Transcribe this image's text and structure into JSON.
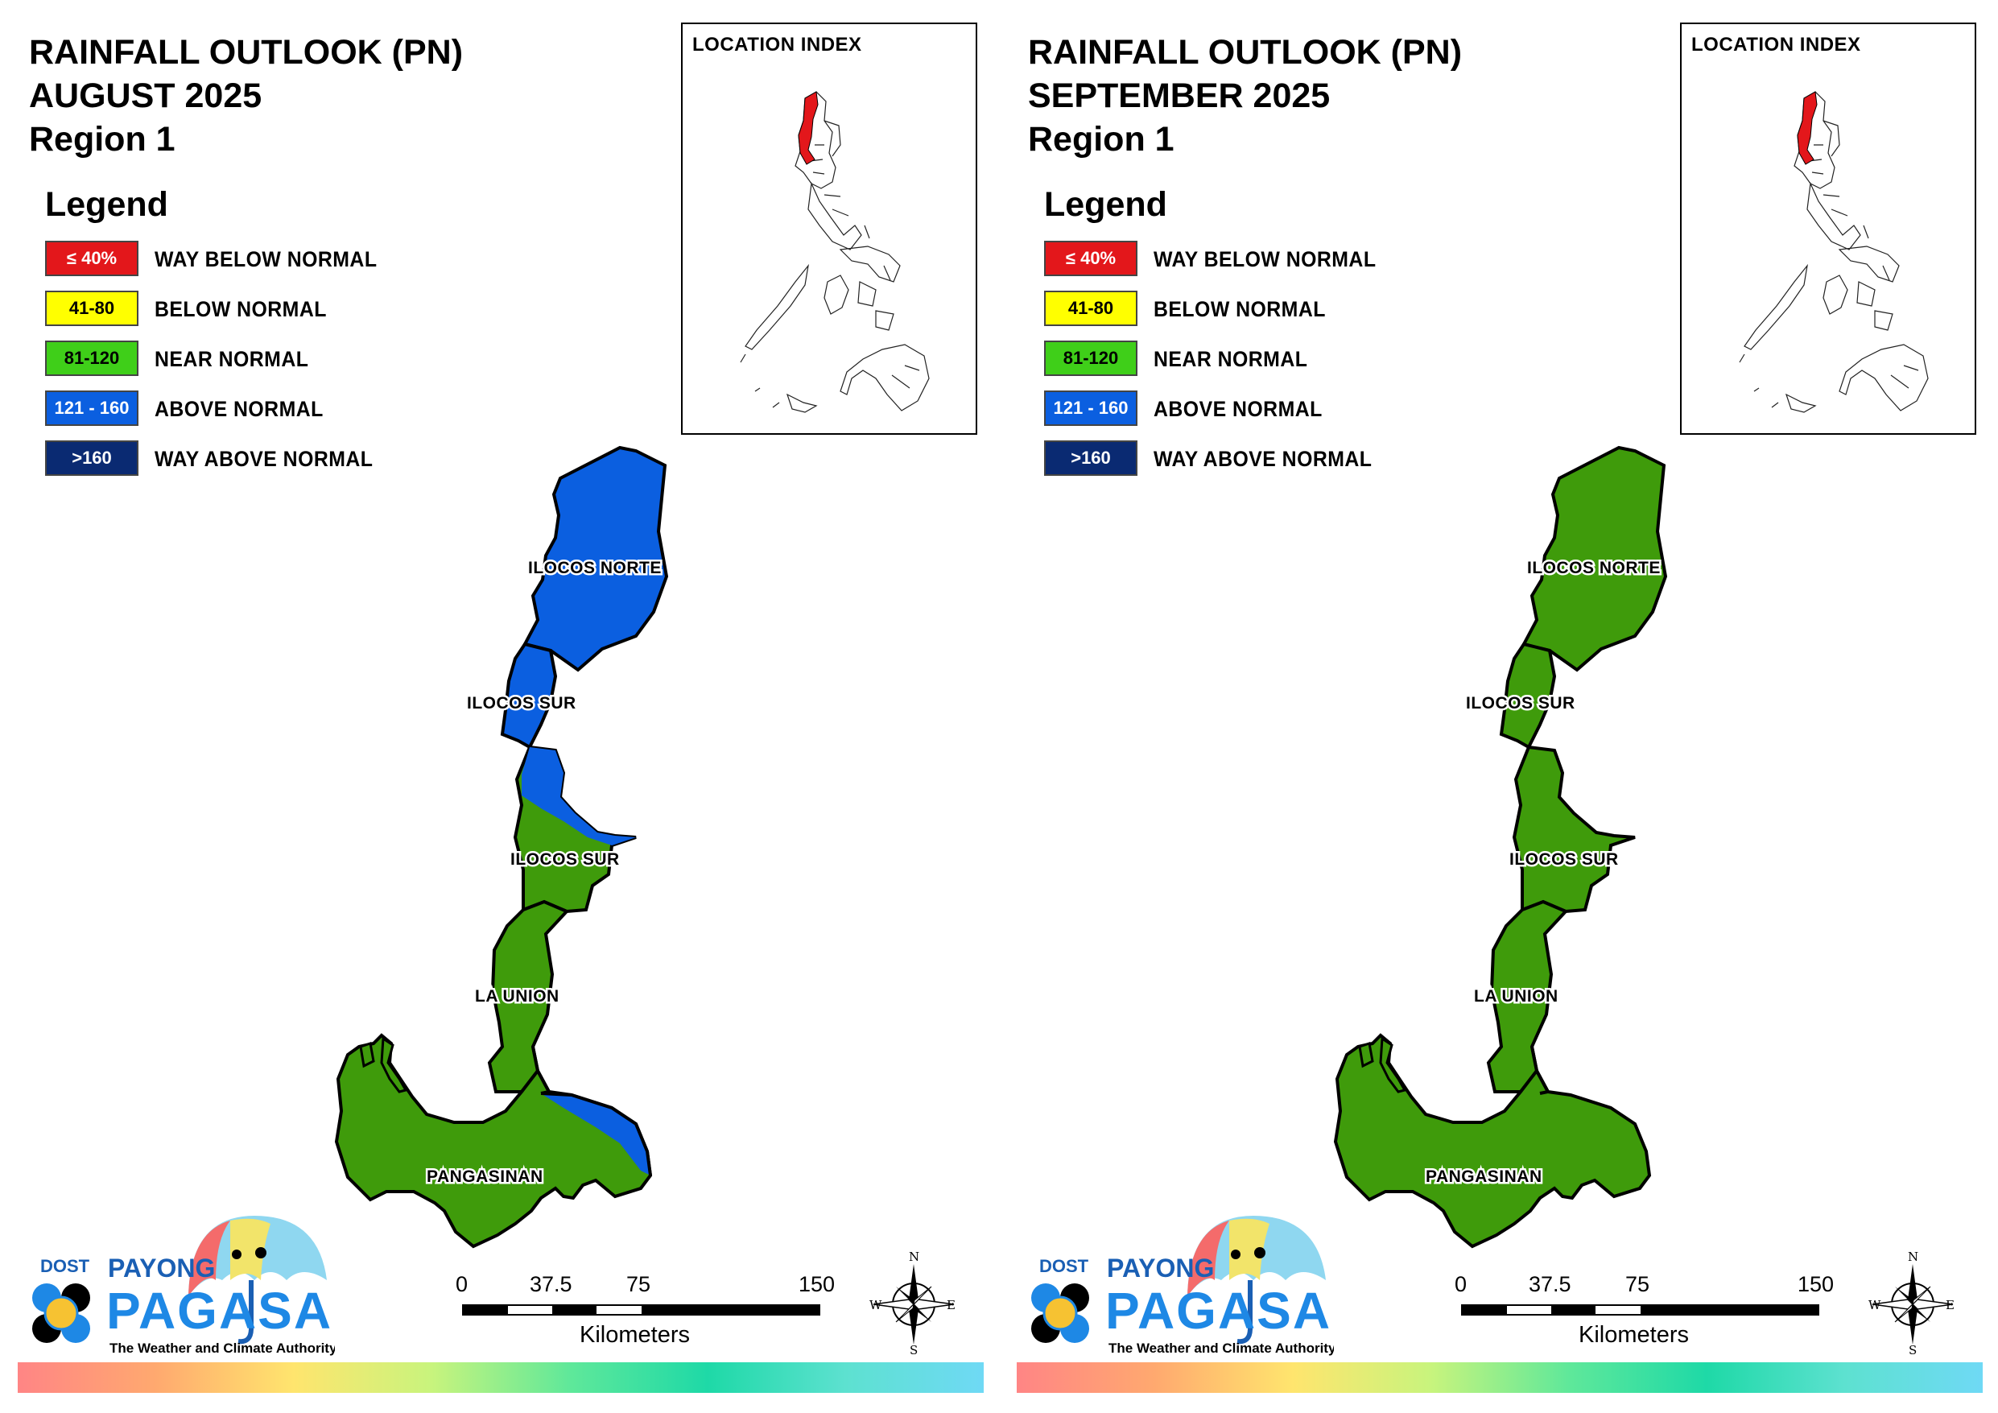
{
  "panels": [
    {
      "id": "august",
      "title_line1": "RAINFALL OUTLOOK (PN)",
      "title_line2": "AUGUST 2025",
      "title_line3": "Region 1",
      "inset_title": "LOCATION INDEX",
      "legend_title": "Legend",
      "legend": [
        {
          "range": "≤ 40%",
          "label": "WAY BELOW NORMAL",
          "color": "#e3171b",
          "text_color": "#ffffff"
        },
        {
          "range": "41-80",
          "label": "BELOW NORMAL",
          "color": "#ffff00",
          "text_color": "#000000"
        },
        {
          "range": "81-120",
          "label": "NEAR NORMAL",
          "color": "#3fcf19",
          "text_color": "#000000"
        },
        {
          "range": "121 - 160",
          "label": "ABOVE NORMAL",
          "color": "#0b5fe0",
          "text_color": "#ffffff"
        },
        {
          "range": ">160",
          "label": "WAY ABOVE NORMAL",
          "color": "#0a2a72",
          "text_color": "#ffffff"
        }
      ],
      "provinces": [
        "ILOCOS NORTE",
        "ILOCOS SUR",
        "ILOCOS SUR",
        "LA UNION",
        "PANGASINAN"
      ],
      "province_categories": {
        "ilocos_norte": "ABOVE NORMAL",
        "ilocos_sur_north": "ABOVE NORMAL",
        "ilocos_sur_south": "NEAR NORMAL with ABOVE NORMAL in northeast",
        "la_union": "NEAR NORMAL",
        "pangasinan": "NEAR NORMAL with ABOVE NORMAL in east"
      }
    },
    {
      "id": "september",
      "title_line1": "RAINFALL OUTLOOK (PN)",
      "title_line2": "SEPTEMBER 2025",
      "title_line3": "Region 1",
      "inset_title": "LOCATION INDEX",
      "legend_title": "Legend",
      "legend": [
        {
          "range": "≤ 40%",
          "label": "WAY BELOW NORMAL",
          "color": "#e3171b",
          "text_color": "#ffffff"
        },
        {
          "range": "41-80",
          "label": "BELOW NORMAL",
          "color": "#ffff00",
          "text_color": "#000000"
        },
        {
          "range": "81-120",
          "label": "NEAR NORMAL",
          "color": "#3fcf19",
          "text_color": "#000000"
        },
        {
          "range": "121 - 160",
          "label": "ABOVE NORMAL",
          "color": "#0b5fe0",
          "text_color": "#ffffff"
        },
        {
          "range": ">160",
          "label": "WAY ABOVE NORMAL",
          "color": "#0a2a72",
          "text_color": "#ffffff"
        }
      ],
      "provinces": [
        "ILOCOS NORTE",
        "ILOCOS SUR",
        "ILOCOS SUR",
        "LA UNION",
        "PANGASINAN"
      ],
      "province_categories": {
        "ilocos_norte": "NEAR NORMAL",
        "ilocos_sur_north": "NEAR NORMAL",
        "ilocos_sur_south": "NEAR NORMAL",
        "la_union": "NEAR NORMAL",
        "pangasinan": "NEAR NORMAL"
      }
    }
  ],
  "scale": {
    "ticks": [
      "0",
      "37.5",
      "75",
      "150"
    ],
    "unit": "Kilometers"
  },
  "compass": {
    "n": "N",
    "s": "S",
    "e": "E",
    "w": "W"
  },
  "logo": {
    "dost": "DOST",
    "payong": "PAYONG",
    "pagasa": "PAGASA",
    "tagline": "The Weather and Climate Authority"
  },
  "colors": {
    "map_green": "#3f9b0b",
    "map_blue": "#0b5fe0",
    "highlight_red": "#e3171b"
  }
}
